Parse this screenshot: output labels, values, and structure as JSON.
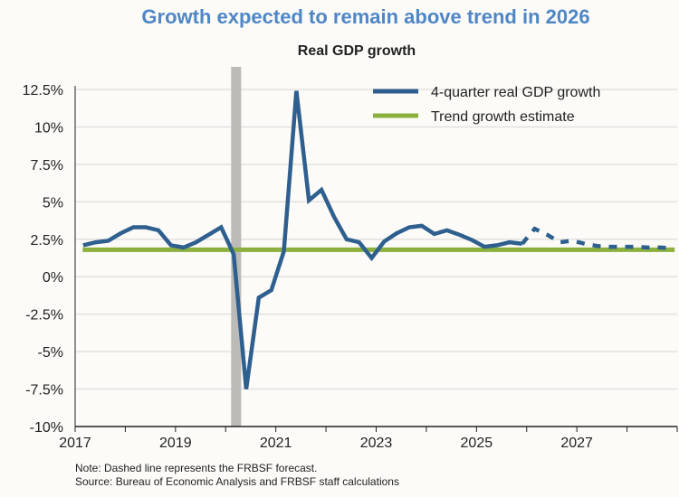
{
  "chart_data": {
    "type": "line",
    "title": "Growth expected to remain above trend in 2026",
    "subtitle": "Real GDP growth",
    "xlabel": "",
    "ylabel": "",
    "xlim": [
      2017,
      2029
    ],
    "ylim": [
      -10,
      12.5
    ],
    "x_tick_labels": [
      "2017",
      "2019",
      "2021",
      "2023",
      "2025",
      "2027"
    ],
    "y_tick_labels": [
      "12.5%",
      "10%",
      "7.5%",
      "5%",
      "2.5%",
      "0%",
      "-2.5%",
      "-5%",
      "-7.5%",
      "-10%"
    ],
    "y_ticks": [
      12.5,
      10,
      7.5,
      5,
      2.5,
      0,
      -2.5,
      -5,
      -7.5,
      -10
    ],
    "grid": "horizontal",
    "legend_position": "top-right",
    "recession_shading": [
      2020.1,
      2020.3
    ],
    "series": [
      {
        "name": "4-quarter real GDP growth",
        "color": "#2e5f8e",
        "start": "2017Q1",
        "frequency": "quarterly",
        "actual": [
          2.1,
          2.3,
          2.4,
          2.9,
          3.3,
          3.3,
          3.1,
          2.1,
          1.95,
          2.3,
          2.8,
          3.3,
          1.5,
          -7.5,
          -1.4,
          -0.9,
          1.7,
          12.4,
          5.1,
          5.8,
          4.0,
          2.5,
          2.3,
          1.25,
          2.35,
          2.9,
          3.3,
          3.4,
          2.85,
          3.1,
          2.8,
          2.45,
          2.0,
          2.1,
          2.3,
          2.2
        ],
        "forecast": [
          3.2,
          2.8,
          2.3,
          2.4,
          2.2,
          2.05,
          2.0,
          2.0,
          2.0,
          1.95,
          1.95,
          1.9
        ]
      },
      {
        "name": "Trend growth estimate",
        "color": "#8cb03e",
        "value": 1.8
      }
    ]
  },
  "notes": {
    "note": "Note: Dashed line represents the FRBSF forecast.",
    "source": "Source: Bureau of Economic Analysis and FRBSF staff calculations"
  }
}
